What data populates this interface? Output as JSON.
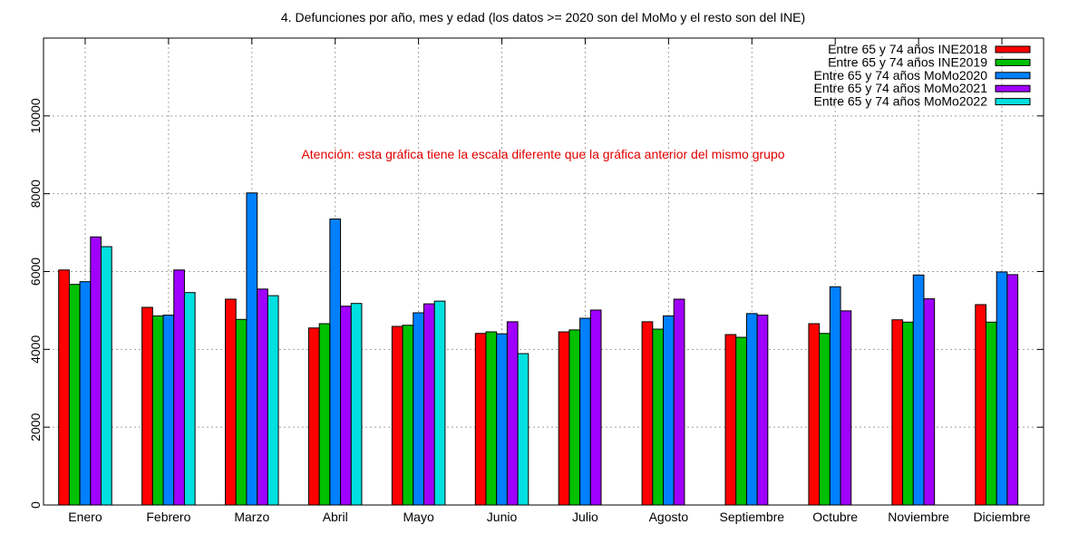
{
  "chart_data": {
    "type": "bar",
    "title": "4. Defunciones por año, mes y edad (los datos >= 2020 son del MoMo y el resto son del INE)",
    "annotation": "Atención: esta gráfica tiene la escala diferente que la gráfica anterior del mismo grupo",
    "xlabel": "",
    "ylabel": "",
    "ylim": [
      0,
      12000
    ],
    "yticks": [
      0,
      2000,
      4000,
      6000,
      8000,
      10000
    ],
    "ytick_labels": [
      "0",
      "2000",
      "4000",
      "6000",
      "8000",
      "10000"
    ],
    "grid": true,
    "legend_position": "top-right",
    "categories": [
      "Enero",
      "Febrero",
      "Marzo",
      "Abril",
      "Mayo",
      "Junio",
      "Julio",
      "Agosto",
      "Septiembre",
      "Octubre",
      "Noviembre",
      "Diciembre"
    ],
    "series": [
      {
        "name": "Entre 65 y 74 años INE2018",
        "color": "#ff0000",
        "values": [
          6040,
          5080,
          5290,
          4550,
          4590,
          4410,
          4450,
          4710,
          4380,
          4660,
          4760,
          5150
        ]
      },
      {
        "name": "Entre 65 y 74 años INE2019",
        "color": "#00c000",
        "values": [
          5670,
          4860,
          4770,
          4660,
          4620,
          4450,
          4500,
          4520,
          4310,
          4410,
          4700,
          4700
        ]
      },
      {
        "name": "Entre 65 y 74 años MoMo2020",
        "color": "#0080ff",
        "values": [
          5740,
          4880,
          8020,
          7350,
          4940,
          4400,
          4800,
          4860,
          4920,
          5610,
          5910,
          5990
        ]
      },
      {
        "name": "Entre 65 y 74 años MoMo2021",
        "color": "#a000ff",
        "values": [
          6890,
          6040,
          5550,
          5110,
          5170,
          4710,
          5010,
          5290,
          4880,
          4990,
          5300,
          5920
        ]
      },
      {
        "name": "Entre 65 y 74 años MoMo2022",
        "color": "#00e0e0",
        "values": [
          6640,
          5460,
          5380,
          5180,
          5240,
          3890,
          null,
          null,
          null,
          null,
          null,
          null
        ]
      }
    ]
  }
}
